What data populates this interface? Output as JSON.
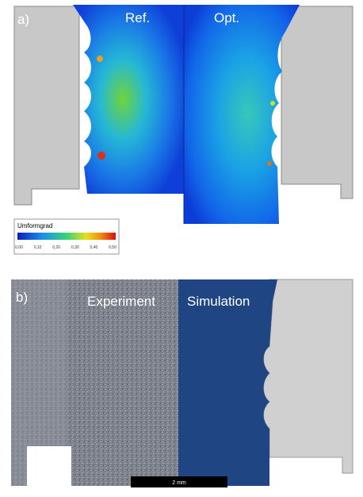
{
  "panel_a": {
    "label": "a)",
    "left_title": "Ref.",
    "right_title": "Opt.",
    "colorbar": {
      "title": "Umformgrad",
      "ticks": [
        "0,00",
        "0,10",
        "0,20",
        "0,30",
        "0,40",
        "0,50"
      ]
    }
  },
  "panel_b": {
    "label": "b)",
    "left_title": "Experiment",
    "right_title": "Simulation",
    "scale_bar": "2 mm"
  }
}
